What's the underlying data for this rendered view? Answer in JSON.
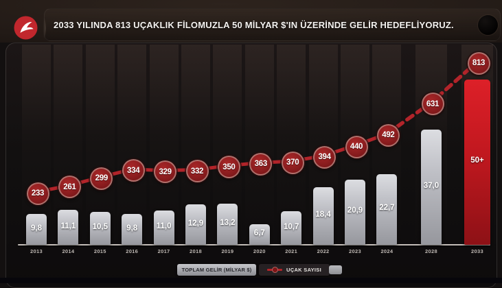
{
  "header": {
    "title": "2033 YILINDA 813 UÇAKLIK FİLOMUZLA 50 MİLYAR $'IN ÜZERİNDE GELİR HEDEFLİYORUZ.",
    "logo": "turkish-airlines-logo"
  },
  "legend": {
    "revenue_label": "TOPLAM GELİR (MİLYAR $)",
    "fleet_label": "UÇAK SAYISI"
  },
  "chart_data": {
    "type": "combo-bar-line",
    "title": "2033 YILINDA 813 UÇAKLIK FİLOMUZLA 50 MİLYAR $'IN ÜZERİNDE GELİR HEDEFLİYORUZ.",
    "categories": [
      "2013",
      "2014",
      "2015",
      "2016",
      "2017",
      "2018",
      "2019",
      "2020",
      "2021",
      "2022",
      "2023",
      "2024",
      "2028",
      "2033"
    ],
    "series": [
      {
        "name": "TOPLAM GELİR (MİLYAR $)",
        "type": "bar",
        "values": [
          9.8,
          11.1,
          10.5,
          9.8,
          11.0,
          12.9,
          13.2,
          6.7,
          10.7,
          18.4,
          20.9,
          22.7,
          37.0,
          50
        ],
        "value_labels": [
          "9,8",
          "11,1",
          "10,5",
          "9,8",
          "11,0",
          "12,9",
          "13,2",
          "6,7",
          "10,7",
          "18,4",
          "20,9",
          "22,7",
          "37,0",
          "50+"
        ],
        "highlighted_category": "2033"
      },
      {
        "name": "UÇAK SAYISI",
        "type": "line",
        "values": [
          233,
          261,
          299,
          334,
          329,
          332,
          350,
          363,
          370,
          394,
          440,
          492,
          631,
          813
        ],
        "dashed_from_index": 11
      }
    ],
    "legend_position": "bottom",
    "grid": false,
    "colors": {
      "accent_red": "#c1272d",
      "line_red": "#b2242a",
      "circle_fill": "#8c1d1f",
      "bar_silver": "#b9bac0",
      "bar_red": "#c1181f",
      "background": "#131010"
    }
  }
}
